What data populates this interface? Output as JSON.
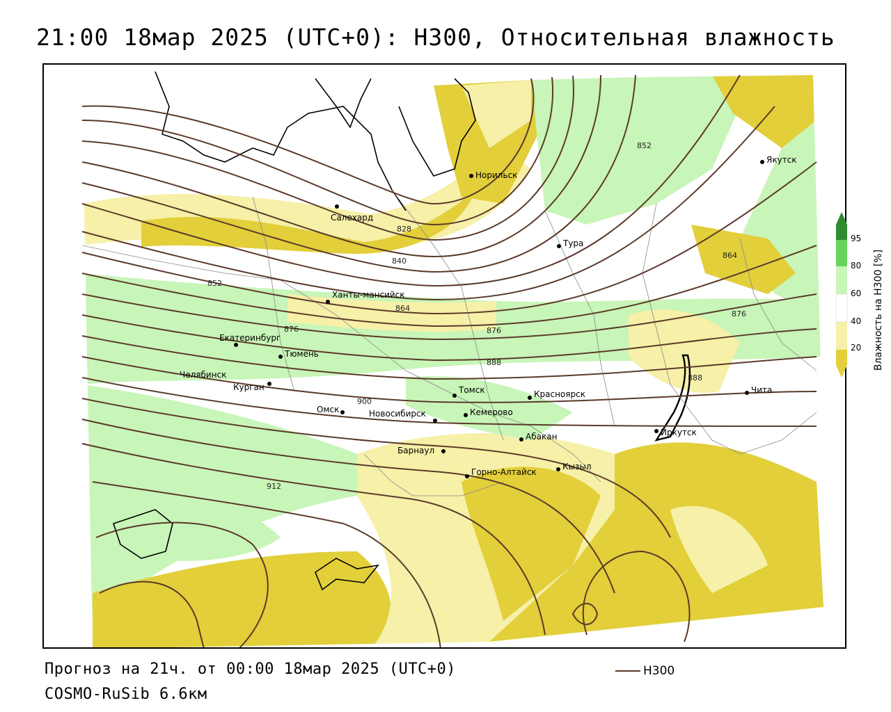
{
  "title": "21:00 18мар 2025 (UTC+0): H300, Относительная влажность",
  "footer": {
    "forecast": "Прогноз на 21ч. от 00:00 18мар 2025 (UTC+0)",
    "model": "COSMO-RuSib 6.6км"
  },
  "legend": {
    "series_label": "H300",
    "line_color": "#5a3a2a"
  },
  "colorbar": {
    "title": "Влажность на H300 [%]",
    "ticks": [
      "95",
      "80",
      "60",
      "40",
      "20"
    ],
    "colors": {
      "very_high": "#2e8b2e",
      "high": "#66d45a",
      "medium_high": "#c8f5b8",
      "neutral": "#ffffff",
      "low": "#f6f0a8",
      "very_low": "#e2cf3a"
    }
  },
  "cities": [
    {
      "name": "Норильск"
    },
    {
      "name": "Якутск"
    },
    {
      "name": "Салехард"
    },
    {
      "name": "Тура"
    },
    {
      "name": "Ханты-мансийск"
    },
    {
      "name": "Екатеринбург"
    },
    {
      "name": "Тюмень"
    },
    {
      "name": "Челябинск"
    },
    {
      "name": "Курган"
    },
    {
      "name": "Омск"
    },
    {
      "name": "Новосибирск"
    },
    {
      "name": "Томск"
    },
    {
      "name": "Кемерово"
    },
    {
      "name": "Красноярск"
    },
    {
      "name": "Абакан"
    },
    {
      "name": "Барнаул"
    },
    {
      "name": "Горно-Алтайск"
    },
    {
      "name": "Кызыл"
    },
    {
      "name": "Иркутск"
    },
    {
      "name": "Чита"
    }
  ],
  "contour_labels": [
    "852",
    "828",
    "840",
    "852",
    "864",
    "876",
    "876",
    "888",
    "900",
    "912",
    "864",
    "876",
    "888"
  ]
}
